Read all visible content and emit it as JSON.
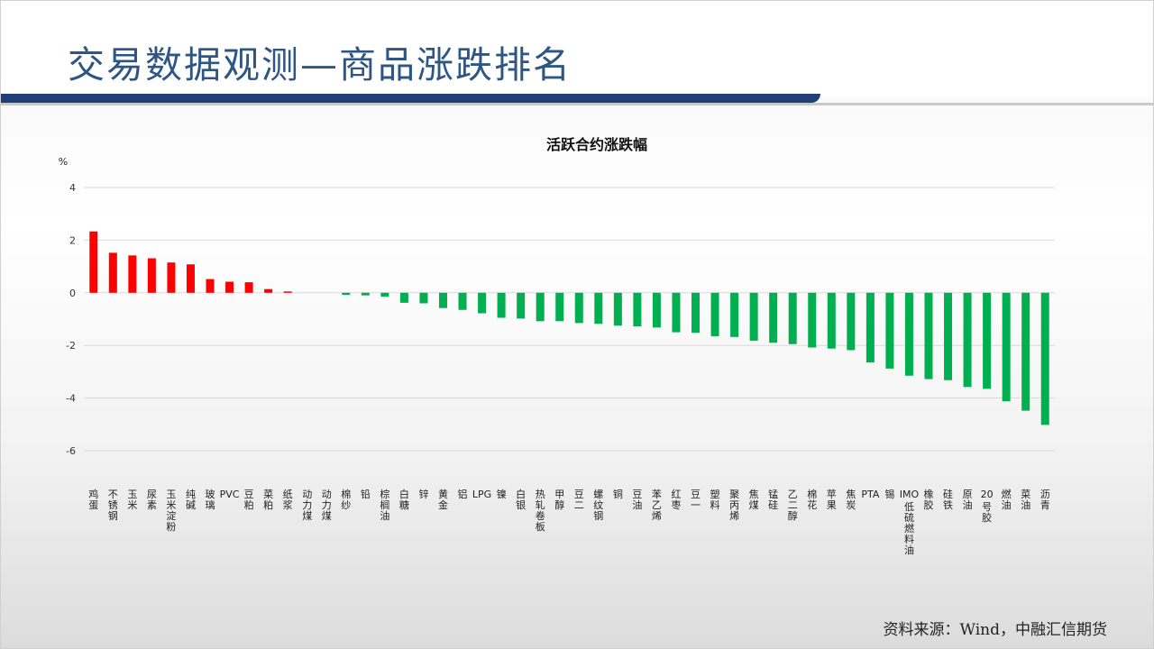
{
  "slide": {
    "title": "交易数据观测—商品涨跌排名",
    "source": "资料来源：Wind，中融汇信期货"
  },
  "colors": {
    "up": "#ff0000",
    "down": "#00b050",
    "title_blue": "#2e5685",
    "bar_navy": "#1f3f78"
  },
  "chart_data": {
    "type": "bar",
    "title": "活跃合约涨跌幅",
    "ylabel": "%",
    "ylim": [
      -6,
      4
    ],
    "yticks": [
      4,
      2,
      0,
      -2,
      -4,
      -6
    ],
    "grid": true,
    "categories": [
      "鸡蛋",
      "不锈钢",
      "玉米",
      "尿素",
      "玉米淀粉",
      "纯碱",
      "玻璃",
      "PVC",
      "豆粕",
      "菜粕",
      "纸浆",
      "动力煤",
      "动力煤",
      "棉纱",
      "铅",
      "棕榈油",
      "白糖",
      "锌",
      "黄金",
      "铝",
      "LPG",
      "镍",
      "白银",
      "热轧卷板",
      "甲醇",
      "豆二",
      "螺纹钢",
      "铜",
      "豆油",
      "苯乙烯",
      "红枣",
      "豆一",
      "塑料",
      "聚丙烯",
      "焦煤",
      "锰硅",
      "乙二醇",
      "棉花",
      "苹果",
      "焦炭",
      "PTA",
      "锡",
      "IMO低硫燃料油",
      "橡胶",
      "硅铁",
      "原油",
      "20号胶",
      "燃油",
      "菜油",
      "沥青"
    ],
    "values": [
      2.33,
      1.52,
      1.42,
      1.31,
      1.15,
      1.08,
      0.52,
      0.42,
      0.4,
      0.14,
      0.05,
      0,
      0,
      -0.08,
      -0.1,
      -0.15,
      -0.38,
      -0.4,
      -0.58,
      -0.65,
      -0.78,
      -0.95,
      -0.98,
      -1.08,
      -1.08,
      -1.15,
      -1.18,
      -1.25,
      -1.28,
      -1.32,
      -1.5,
      -1.52,
      -1.65,
      -1.68,
      -1.82,
      -1.9,
      -1.95,
      -2.08,
      -2.12,
      -2.18,
      -2.65,
      -2.88,
      -3.15,
      -3.28,
      -3.32,
      -3.58,
      -3.65,
      -4.12,
      -4.48,
      -5.02
    ]
  }
}
